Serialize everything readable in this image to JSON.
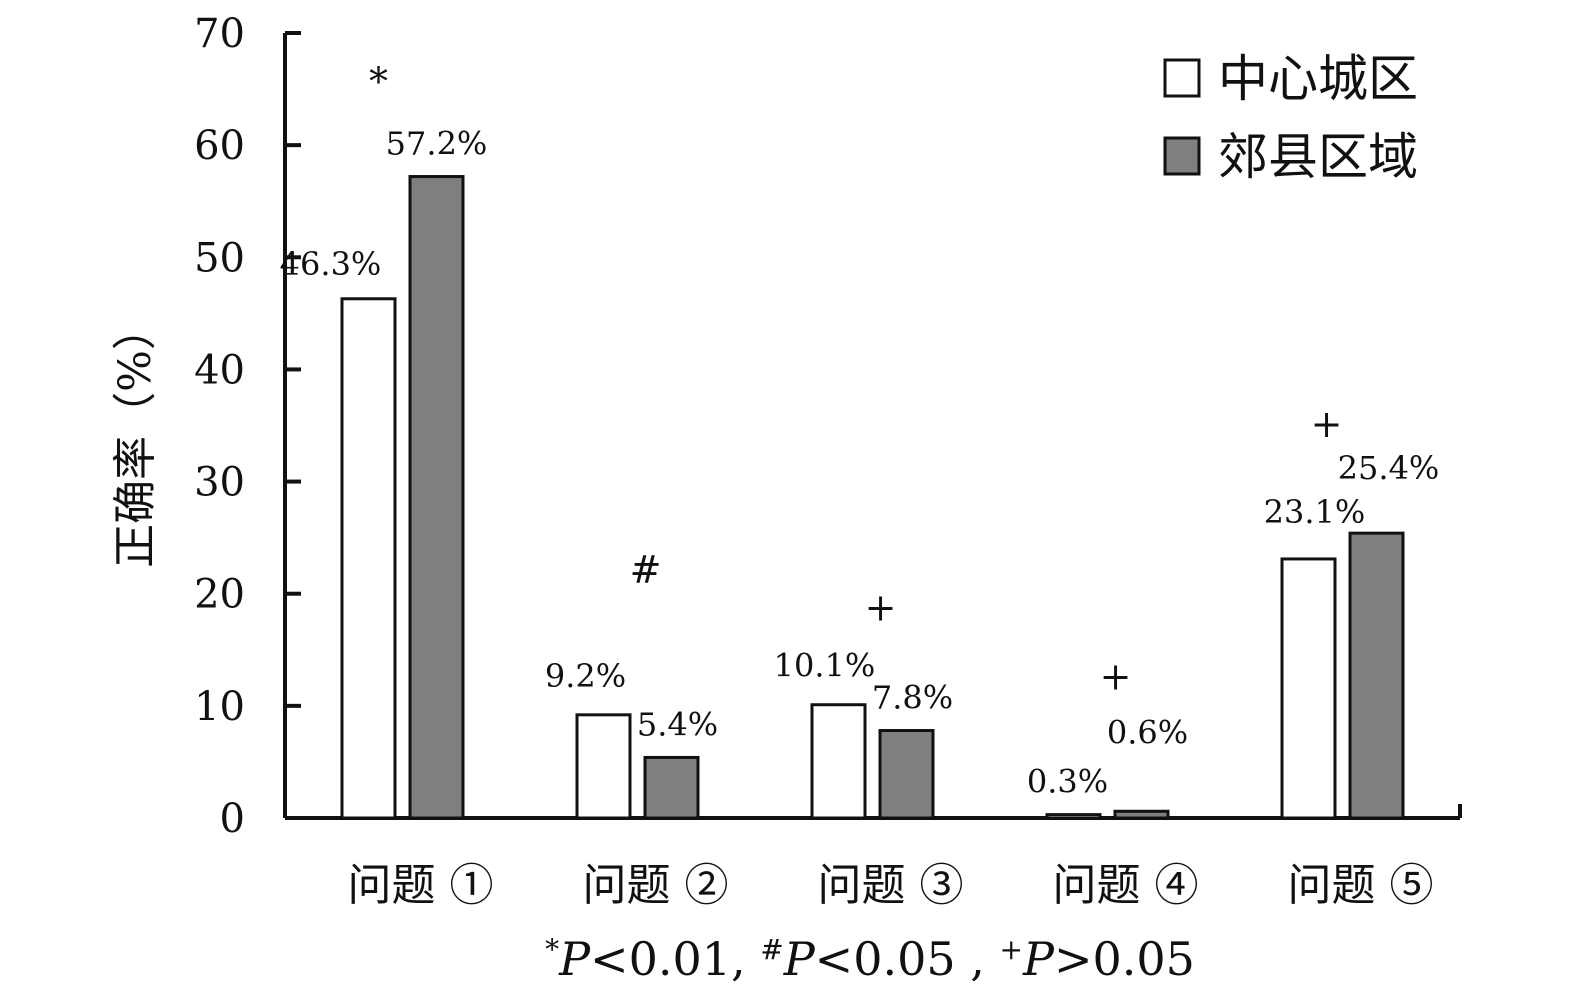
{
  "chart_data": {
    "type": "bar",
    "ylabel": "正确率（%）",
    "ylim": [
      0,
      70
    ],
    "yticks": [
      0,
      10,
      20,
      30,
      40,
      50,
      60,
      70
    ],
    "categories": [
      "问题 ①",
      "问题 ②",
      "问题 ③",
      "问题 ④",
      "问题 ⑤"
    ],
    "series": [
      {
        "name": "中心城区",
        "color": "#ffffff",
        "values": [
          46.3,
          9.2,
          10.1,
          0.3,
          23.1
        ],
        "labels": [
          "46.3%",
          "9.2%",
          "10.1%",
          "0.3%",
          "23.1%"
        ]
      },
      {
        "name": "郊县区域",
        "color": "#7f7f7f",
        "values": [
          57.2,
          5.4,
          7.8,
          0.6,
          25.4
        ],
        "labels": [
          "57.2%",
          "5.4%",
          "7.8%",
          "0.6%",
          "25.4%"
        ]
      }
    ],
    "significance": [
      "*",
      "#",
      "+",
      "+",
      "+"
    ],
    "legend_position": "top-right",
    "grid": false,
    "footnote": {
      "m1": "*",
      "t1": "P",
      "v1": "<0.01, ",
      "m2": "#",
      "t2": "P",
      "v2": "<0.05 , ",
      "m3": "+",
      "t3": "P",
      "v3": ">0.05"
    }
  }
}
